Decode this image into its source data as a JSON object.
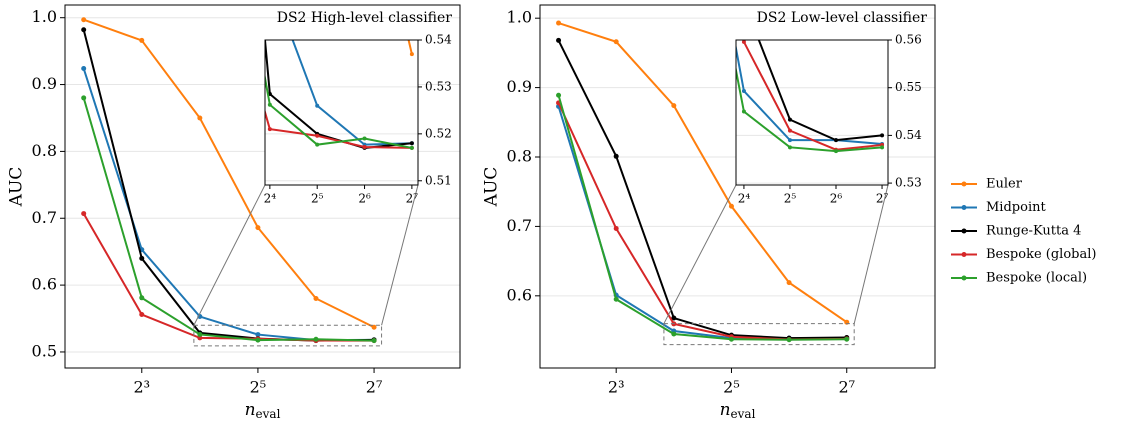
{
  "chart_data": [
    {
      "type": "line",
      "title": "DS2 High-level classifier",
      "xlabel": "n",
      "xlabel_subscript": "eval",
      "ylabel": "AUC",
      "xscale": "log",
      "xbase": 2,
      "grid": true,
      "x": [
        4,
        8,
        16,
        32,
        64,
        128
      ],
      "xlim": [
        3.2,
        357
      ],
      "xticks": [
        {
          "value": 8,
          "label": "2³"
        },
        {
          "value": 32,
          "label": "2⁵"
        },
        {
          "value": 128,
          "label": "2⁷"
        }
      ],
      "ylim": [
        0.476,
        1.019
      ],
      "yticks": [
        0.5,
        0.6,
        0.7,
        0.8,
        0.9,
        {
          "value": 1.0,
          "label": "1.0"
        }
      ],
      "series": [
        {
          "name": "Euler",
          "color": "#ff7f0e",
          "values": [
            0.997,
            0.966,
            0.85,
            0.686,
            0.58,
            0.537
          ]
        },
        {
          "name": "Midpoint",
          "color": "#1f77b4",
          "values": [
            0.924,
            0.653,
            0.553,
            0.526,
            0.5177,
            0.518
          ]
        },
        {
          "name": "Runge-Kutta 4",
          "color": "#000000",
          "values": [
            0.982,
            0.64,
            0.5285,
            0.52,
            0.517,
            0.518
          ]
        },
        {
          "name": "Bespoke (global)",
          "color": "#d62728",
          "values": [
            0.707,
            0.556,
            0.521,
            0.5196,
            0.5172,
            0.517
          ]
        },
        {
          "name": "Bespoke (local)",
          "color": "#2ca02c",
          "values": [
            0.88,
            0.581,
            0.5262,
            0.5177,
            0.519,
            0.517
          ]
        }
      ],
      "inset": {
        "xlim": [
          14.9,
          140
        ],
        "xticks": [
          {
            "value": 16,
            "label": "2⁴"
          },
          {
            "value": 32,
            "label": "2⁵"
          },
          {
            "value": 64,
            "label": "2⁶"
          },
          {
            "value": 128,
            "label": "2⁷"
          }
        ],
        "ylim": [
          0.5091,
          0.54
        ],
        "yticks": [
          0.51,
          0.52,
          0.53,
          0.54
        ]
      }
    },
    {
      "type": "line",
      "title": "DS2 Low-level classifier",
      "xlabel": "n",
      "xlabel_subscript": "eval",
      "ylabel": "AUC",
      "xscale": "log",
      "xbase": 2,
      "grid": true,
      "x": [
        4,
        8,
        16,
        32,
        64,
        128
      ],
      "xlim": [
        3.2,
        370
      ],
      "xticks": [
        {
          "value": 8,
          "label": "2³"
        },
        {
          "value": 32,
          "label": "2⁵"
        },
        {
          "value": 128,
          "label": "2⁷"
        }
      ],
      "ylim": [
        0.496,
        1.019
      ],
      "yticks": [
        0.6,
        0.7,
        0.8,
        0.9,
        {
          "value": 1.0,
          "label": "1.0"
        }
      ],
      "series": [
        {
          "color": "#ff7f0e",
          "values": [
            0.993,
            0.966,
            0.874,
            0.729,
            0.619,
            0.562
          ]
        },
        {
          "color": "#1f77b4",
          "values": [
            0.873,
            0.601,
            0.5493,
            0.539,
            0.539,
            0.5382
          ]
        },
        {
          "color": "#000000",
          "values": [
            0.968,
            0.801,
            0.568,
            0.5433,
            0.539,
            0.54
          ]
        },
        {
          "color": "#d62728",
          "values": [
            0.878,
            0.697,
            0.5596,
            0.541,
            0.537,
            0.538
          ]
        },
        {
          "color": "#2ca02c",
          "values": [
            0.889,
            0.595,
            0.545,
            0.5375,
            0.5367,
            0.5375
          ]
        }
      ],
      "inset": {
        "xlim": [
          14.2,
          140
        ],
        "xticks": [
          {
            "value": 16,
            "label": "2⁴"
          },
          {
            "value": 32,
            "label": "2⁵"
          },
          {
            "value": 64,
            "label": "2⁶"
          },
          {
            "value": 128,
            "label": "2⁷"
          }
        ],
        "ylim": [
          0.5296,
          0.56
        ],
        "yticks": [
          0.53,
          0.54,
          0.55,
          0.56
        ]
      }
    }
  ]
}
